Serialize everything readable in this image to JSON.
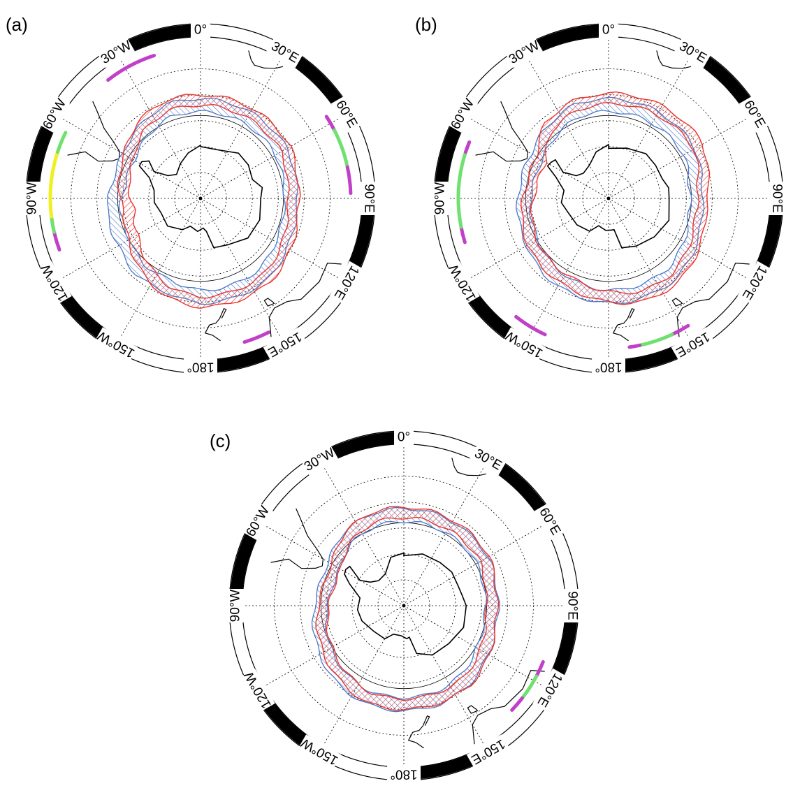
{
  "figure": {
    "panels": [
      {
        "label": "(a)",
        "lon_labels": [
          "0°",
          "30°E",
          "60°E",
          "90°E",
          "120°E",
          "150°E",
          "180°",
          "150°W",
          "120°W",
          "90°W",
          "60°W",
          "30°W"
        ],
        "red_band": [
          [
            60,
            52
          ],
          [
            80,
            54
          ],
          [
            100,
            54
          ],
          [
            120,
            52
          ],
          [
            140,
            50
          ],
          [
            160,
            50
          ],
          [
            180,
            50
          ],
          [
            200,
            52
          ],
          [
            220,
            56
          ],
          [
            240,
            60
          ],
          [
            260,
            62
          ],
          [
            280,
            60
          ],
          [
            300,
            58
          ],
          [
            320,
            54
          ],
          [
            340,
            52
          ]
        ],
        "blue_band": [
          [
            60,
            54
          ],
          [
            80,
            55
          ],
          [
            100,
            55
          ],
          [
            120,
            54
          ],
          [
            140,
            52
          ],
          [
            160,
            52
          ],
          [
            180,
            52
          ],
          [
            200,
            54
          ],
          [
            220,
            54
          ],
          [
            240,
            56
          ],
          [
            260,
            56
          ],
          [
            280,
            58
          ],
          [
            300,
            58
          ],
          [
            320,
            56
          ],
          [
            340,
            54
          ]
        ],
        "rim_arcs": [
          {
            "start": 322,
            "end": 342,
            "color": "magenta"
          },
          {
            "start": 57,
            "end": 63,
            "color": "magenta"
          },
          {
            "start": 63,
            "end": 78,
            "color": "green"
          },
          {
            "start": 78,
            "end": 88,
            "color": "magenta"
          },
          {
            "start": 153,
            "end": 163,
            "color": "magenta"
          },
          {
            "start": 250,
            "end": 257,
            "color": "magenta"
          },
          {
            "start": 257,
            "end": 263,
            "color": "green"
          },
          {
            "start": 263,
            "end": 288,
            "color": "yellow"
          },
          {
            "start": 288,
            "end": 296,
            "color": "green"
          }
        ]
      },
      {
        "label": "(b)",
        "lon_labels": [
          "0°",
          "30°E",
          "60°E",
          "90°E",
          "120°E",
          "150°E",
          "180°",
          "150°W",
          "120°W",
          "90°W",
          "60°W",
          "30°W"
        ],
        "red_band": [
          [
            60,
            50
          ],
          [
            80,
            53
          ],
          [
            100,
            54
          ],
          [
            120,
            52
          ],
          [
            140,
            50
          ],
          [
            160,
            50
          ],
          [
            180,
            52
          ],
          [
            200,
            54
          ],
          [
            220,
            55
          ],
          [
            240,
            56
          ],
          [
            260,
            58
          ],
          [
            280,
            60
          ],
          [
            300,
            60
          ],
          [
            320,
            54
          ],
          [
            340,
            52
          ]
        ],
        "blue_band": [
          [
            60,
            54
          ],
          [
            80,
            56
          ],
          [
            100,
            56
          ],
          [
            120,
            54
          ],
          [
            140,
            52
          ],
          [
            160,
            52
          ],
          [
            180,
            52
          ],
          [
            200,
            53
          ],
          [
            220,
            54
          ],
          [
            240,
            56
          ],
          [
            260,
            57
          ],
          [
            280,
            58
          ],
          [
            300,
            58
          ],
          [
            320,
            56
          ],
          [
            340,
            54
          ]
        ],
        "rim_arcs": [
          {
            "start": 148,
            "end": 155,
            "color": "magenta"
          },
          {
            "start": 155,
            "end": 168,
            "color": "green"
          },
          {
            "start": 168,
            "end": 172,
            "color": "magenta"
          },
          {
            "start": 205,
            "end": 218,
            "color": "magenta"
          },
          {
            "start": 253,
            "end": 259,
            "color": "magenta"
          },
          {
            "start": 259,
            "end": 288,
            "color": "green"
          },
          {
            "start": 288,
            "end": 292,
            "color": "magenta"
          }
        ]
      },
      {
        "label": "(c)",
        "lon_labels": [
          "0°",
          "30°E",
          "60°E",
          "90°E",
          "120°E",
          "150°E",
          "180°",
          "150°W",
          "120°W",
          "90°W",
          "60°W",
          "30°W"
        ],
        "red_band": [
          [
            60,
            54
          ],
          [
            80,
            56
          ],
          [
            100,
            56
          ],
          [
            120,
            54
          ],
          [
            140,
            52
          ],
          [
            160,
            52
          ],
          [
            180,
            52
          ],
          [
            200,
            52
          ],
          [
            220,
            54
          ],
          [
            240,
            56
          ],
          [
            260,
            58
          ],
          [
            280,
            60
          ],
          [
            300,
            60
          ],
          [
            320,
            56
          ],
          [
            340,
            54
          ]
        ],
        "blue_band": [
          [
            60,
            55
          ],
          [
            80,
            56
          ],
          [
            100,
            56
          ],
          [
            120,
            55
          ],
          [
            140,
            53
          ],
          [
            160,
            52
          ],
          [
            180,
            52
          ],
          [
            200,
            52
          ],
          [
            220,
            53
          ],
          [
            240,
            55
          ],
          [
            260,
            57
          ],
          [
            280,
            59
          ],
          [
            300,
            59
          ],
          [
            320,
            56
          ],
          [
            340,
            55
          ]
        ],
        "rim_arcs": [
          {
            "start": 112,
            "end": 118,
            "color": "magenta"
          },
          {
            "start": 118,
            "end": 128,
            "color": "green"
          },
          {
            "start": 128,
            "end": 134,
            "color": "magenta"
          }
        ]
      }
    ]
  },
  "colors": {
    "red": "#e8352f",
    "blue": "#4a78c8",
    "magenta": "#c040c8",
    "green": "#70e070",
    "yellow": "#f0f020",
    "land": "#000000",
    "grid": "#000000"
  }
}
